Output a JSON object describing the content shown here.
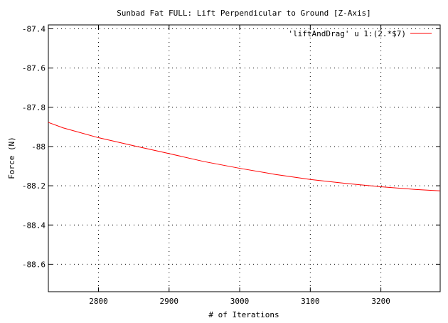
{
  "chart_data": {
    "type": "line",
    "title": "Sunbad Fat FULL: Lift Perpendicular to Ground [Z-Axis]",
    "xlabel": "# of Iterations",
    "ylabel": "Force (N)",
    "xlim": [
      2729,
      3284
    ],
    "ylim": [
      -88.74,
      -87.38
    ],
    "xticks": [
      2800,
      2900,
      3000,
      3100,
      3200
    ],
    "xtick_labels": [
      "2800",
      "2900",
      "3000",
      "3100",
      "3200"
    ],
    "yticks": [
      -87.4,
      -87.6,
      -87.8,
      -88,
      -88.2,
      -88.4,
      -88.6
    ],
    "ytick_labels": [
      "-87.4",
      "-87.6",
      "-87.8",
      "-88",
      "-88.2",
      "-88.4",
      "-88.6"
    ],
    "grid": true,
    "legend_position": "top-right",
    "series": [
      {
        "name": "'liftAndDrag' u 1:(2.*$7)",
        "color": "#ff0000",
        "x": [
          2729,
          2750,
          2800,
          2850,
          2900,
          2950,
          3000,
          3050,
          3100,
          3150,
          3200,
          3250,
          3284
        ],
        "y": [
          -87.877,
          -87.905,
          -87.955,
          -87.996,
          -88.036,
          -88.077,
          -88.111,
          -88.142,
          -88.168,
          -88.188,
          -88.205,
          -88.219,
          -88.226
        ]
      }
    ]
  }
}
